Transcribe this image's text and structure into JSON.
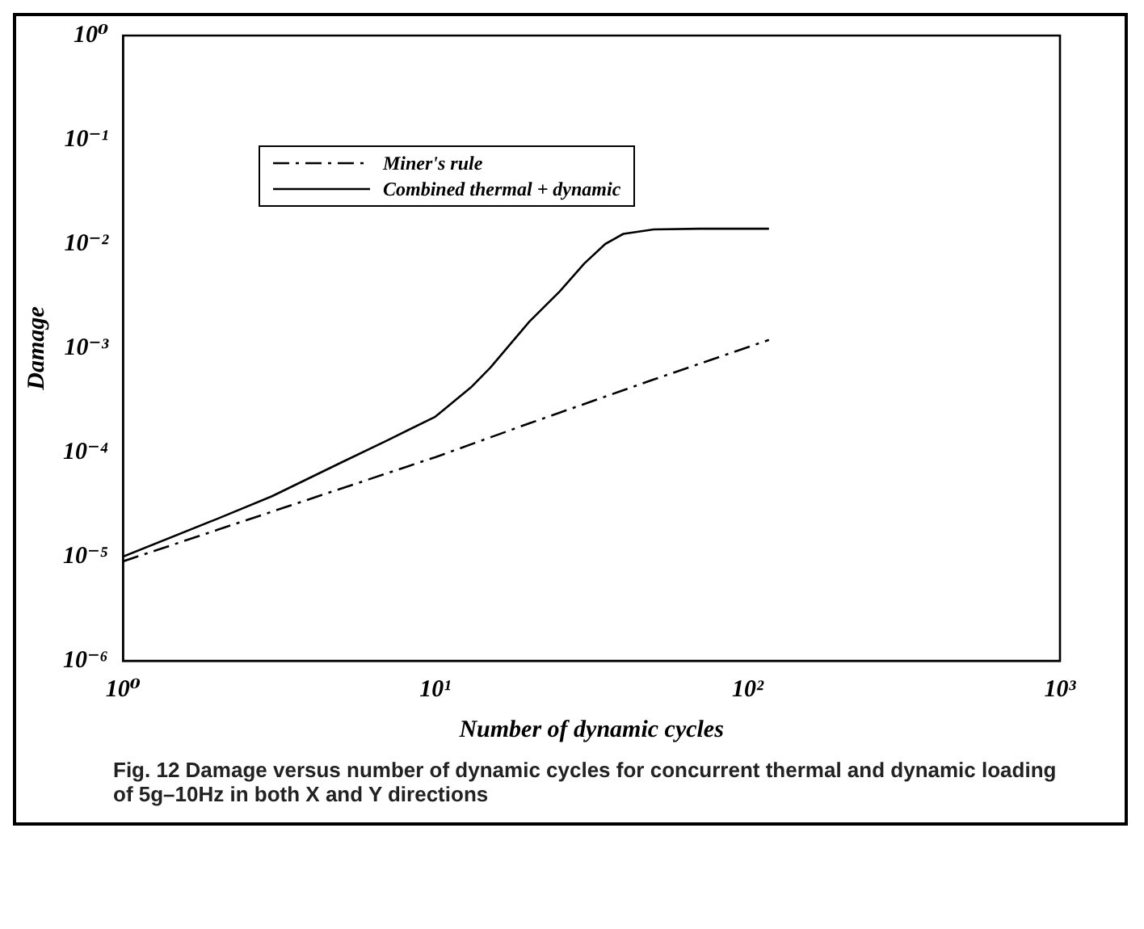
{
  "chart_data": {
    "type": "line",
    "xlabel": "Number of dynamic cycles",
    "ylabel": "Damage",
    "log": "xy",
    "xlim": [
      1,
      1000
    ],
    "ylim": [
      1e-06,
      1
    ],
    "xticks": [
      {
        "value": 1,
        "label": "10⁰"
      },
      {
        "value": 10,
        "label": "10¹"
      },
      {
        "value": 100,
        "label": "10²"
      },
      {
        "value": 1000,
        "label": "10³"
      }
    ],
    "yticks": [
      {
        "value": 1e-06,
        "label": "10⁻⁶"
      },
      {
        "value": 1e-05,
        "label": "10⁻⁵"
      },
      {
        "value": 0.0001,
        "label": "10⁻⁴"
      },
      {
        "value": 0.001,
        "label": "10⁻³"
      },
      {
        "value": 0.01,
        "label": "10⁻²"
      },
      {
        "value": 0.1,
        "label": "10⁻¹"
      },
      {
        "value": 1,
        "label": "10⁰"
      }
    ],
    "grid": false,
    "legend": "top left",
    "marker": "none",
    "series": [
      {
        "name": "Miner's rule",
        "color": "#000000",
        "line_style": "dashdot",
        "x": [
          1,
          2,
          5,
          10,
          20,
          50,
          117
        ],
        "values": [
          9e-06,
          1.8e-05,
          4.5e-05,
          9e-05,
          0.00019,
          0.0005,
          0.0012
        ]
      },
      {
        "name": "Combined thermal + dynamic",
        "color": "#000000",
        "line_style": "solid",
        "x": [
          1,
          2,
          3,
          5,
          7,
          10,
          13,
          15,
          20,
          25,
          30,
          35,
          40,
          50,
          70,
          117
        ],
        "values": [
          1e-05,
          2.3e-05,
          3.8e-05,
          8e-05,
          0.00013,
          0.00022,
          0.00042,
          0.00065,
          0.0018,
          0.0035,
          0.0065,
          0.01,
          0.0125,
          0.0138,
          0.014,
          0.014
        ]
      }
    ],
    "annotations": [
      "Fig. 12   Damage versus number of dynamic cycles for concurrent thermal and dynamic loading of 5g–10Hz in both X and Y directions"
    ]
  }
}
